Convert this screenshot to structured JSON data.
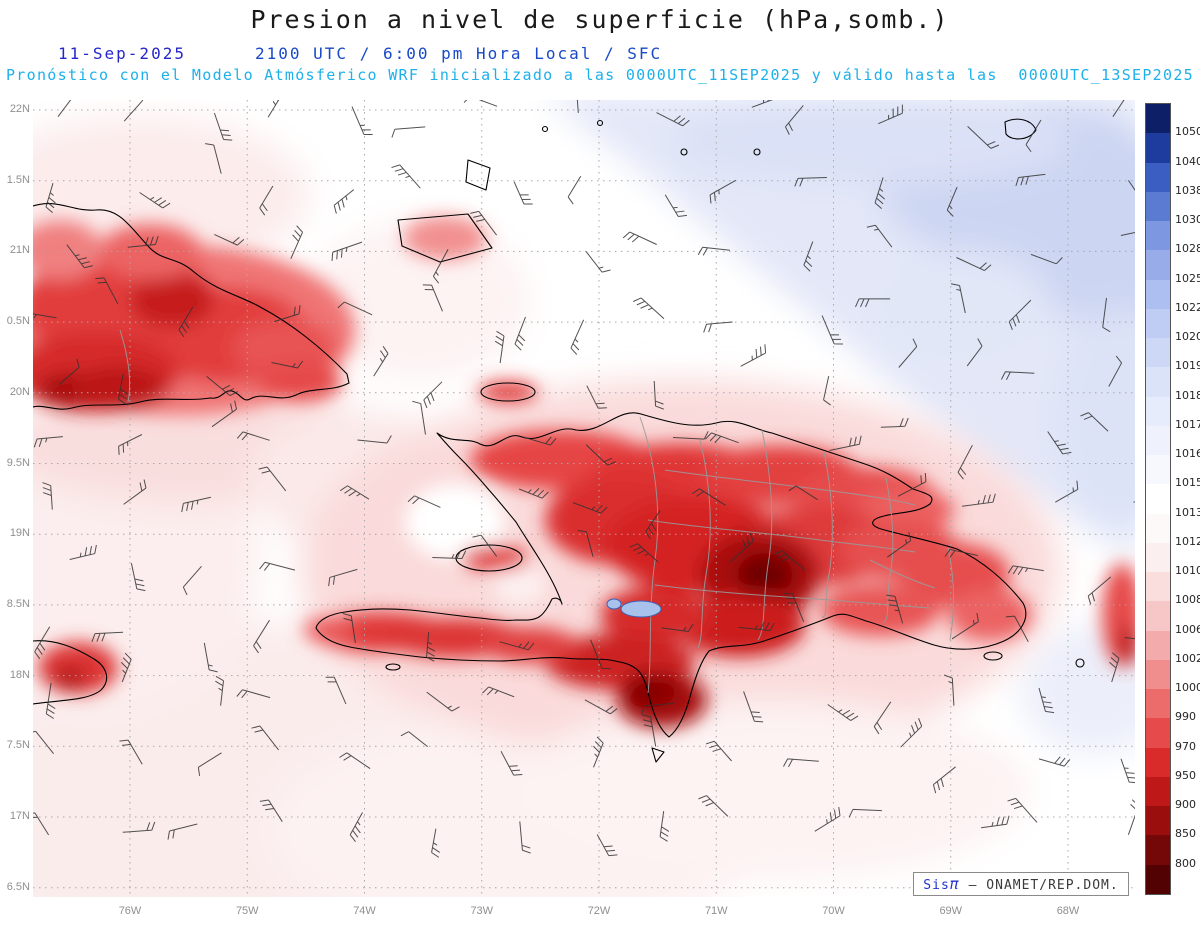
{
  "header": {
    "title": "Presion a nivel de superficie (hPa,somb.)",
    "date": "11-Sep-2025",
    "time_line": "2100 UTC / 6:00 pm Hora Local / SFC",
    "model_line": "Pronóstico con el Modelo Atmósferico WRF inicializado a las 0000UTC_11SEP2025 y válido hasta las  0000UTC_13SEP2025"
  },
  "axes": {
    "lat_labels": [
      "22N",
      "1.5N",
      "21N",
      "0.5N",
      "20N",
      "9.5N",
      "19N",
      "8.5N",
      "18N",
      "7.5N",
      "17N",
      "6.5N"
    ],
    "lon_labels": [
      "76W",
      "75W",
      "74W",
      "73W",
      "72W",
      "71W",
      "70W",
      "69W",
      "68W"
    ]
  },
  "colorbar": {
    "unit": "hPa",
    "labels": [
      "1050",
      "1040",
      "1038",
      "1030",
      "1028",
      "1025",
      "1022",
      "1020",
      "1019",
      "1018",
      "1017",
      "1016",
      "1015",
      "1013",
      "1012",
      "1010",
      "1008",
      "1006",
      "1002",
      "1000",
      "990",
      "970",
      "950",
      "900",
      "850",
      "800"
    ],
    "colors": [
      "#0d1f66",
      "#1e3c9e",
      "#3a5ec2",
      "#5b7ad2",
      "#7d97e0",
      "#97ace9",
      "#adbff0",
      "#bfccf4",
      "#cdd8f7",
      "#dbe3f9",
      "#e6ecfb",
      "#eff2fc",
      "#f7f8fe",
      "#ffffff",
      "#fef9f9",
      "#fcefef",
      "#fadddd",
      "#f7c7c7",
      "#f4abab",
      "#f08e8e",
      "#ec6c6c",
      "#e64a4a",
      "#da2b2b",
      "#bf1818",
      "#9a0e0e",
      "#740707",
      "#520202"
    ]
  },
  "attribution": {
    "sis": "Sis",
    "pi": "π",
    "rest": " – ONAMET/REP.DOM."
  },
  "wind_barbs": {
    "color": "#333333"
  }
}
